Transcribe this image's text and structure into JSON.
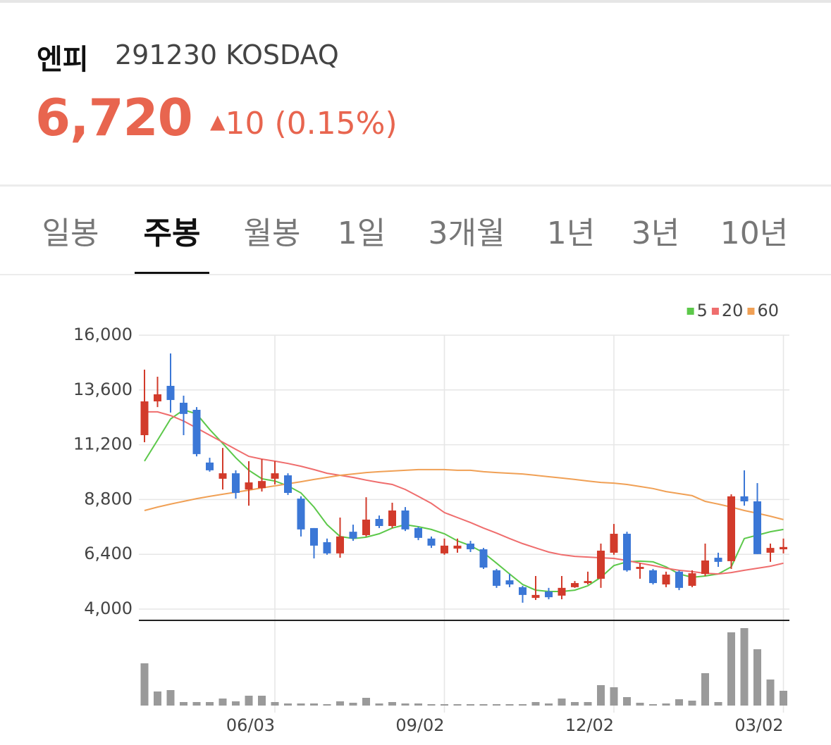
{
  "header": {
    "name": "엔피",
    "code": "291230 KOSDAQ",
    "price": "6,720",
    "change": "10 (0.15%)"
  },
  "tabs": {
    "items": [
      "일봉",
      "주봉",
      "월봉",
      "1일",
      "3개월",
      "1년",
      "3년",
      "10년"
    ],
    "selected": 1
  },
  "chart_data": {
    "type": "candlestick",
    "categories": [
      null,
      null,
      null,
      null,
      null,
      null,
      null,
      null,
      null,
      null,
      "06/03",
      null,
      null,
      null,
      null,
      null,
      null,
      null,
      null,
      null,
      null,
      null,
      null,
      "09/02",
      null,
      null,
      null,
      null,
      null,
      null,
      null,
      null,
      null,
      null,
      null,
      null,
      "12/02",
      null,
      null,
      null,
      null,
      null,
      null,
      null,
      null,
      null,
      null,
      null,
      null,
      "03/02"
    ],
    "open": [
      11620,
      13100,
      13780,
      13040,
      12730,
      10420,
      9710,
      9950,
      9240,
      9300,
      9710,
      9860,
      8840,
      7550,
      6930,
      6440,
      7390,
      7240,
      7950,
      7640,
      8320,
      7550,
      7090,
      6440,
      6650,
      6870,
      6620,
      5700,
      5260,
      4960,
      4490,
      4770,
      4590,
      4960,
      5140,
      5330,
      6470,
      7300,
      5760,
      5700,
      5080,
      5640,
      5020,
      5540,
      6250,
      6100,
      8940,
      8720,
      6470,
      6620
    ],
    "high": [
      14490,
      14180,
      15200,
      13350,
      12850,
      10630,
      11060,
      10080,
      10480,
      10570,
      10480,
      9950,
      8940,
      7550,
      7090,
      8010,
      7700,
      8900,
      8100,
      8660,
      8470,
      7610,
      7180,
      7090,
      7090,
      6990,
      6680,
      5760,
      5540,
      5020,
      5450,
      4930,
      5450,
      5230,
      5640,
      6870,
      7730,
      7390,
      6010,
      5760,
      5640,
      5700,
      5700,
      6870,
      6470,
      9030,
      10080,
      9520,
      6870,
      7090
    ],
    "low": [
      11310,
      12850,
      12610,
      11620,
      10690,
      10020,
      9240,
      8840,
      8530,
      9150,
      9460,
      9000,
      7180,
      6220,
      6380,
      6250,
      6990,
      7180,
      7550,
      7550,
      7420,
      7020,
      6680,
      6380,
      6470,
      6500,
      5760,
      4930,
      4960,
      4280,
      4400,
      4430,
      4430,
      4930,
      5080,
      4930,
      6380,
      5640,
      5330,
      5080,
      4960,
      4830,
      4960,
      5450,
      5850,
      5760,
      8530,
      6410,
      6070,
      6440
    ],
    "close": [
      13100,
      13410,
      13160,
      12550,
      10790,
      10080,
      9950,
      9090,
      9550,
      9610,
      9950,
      9090,
      7490,
      6780,
      6440,
      7180,
      7090,
      7920,
      7640,
      8320,
      7490,
      7120,
      6780,
      6780,
      6780,
      6620,
      5820,
      5020,
      5080,
      4620,
      4620,
      4520,
      4930,
      5140,
      5230,
      6560,
      7300,
      5700,
      5850,
      5140,
      5510,
      4930,
      5570,
      6130,
      6070,
      8940,
      8720,
      6410,
      6680,
      6720
    ],
    "volume": [
      60,
      20,
      22,
      5,
      5,
      5,
      10,
      6,
      14,
      14,
      5,
      3,
      3,
      3,
      2,
      6,
      4,
      11,
      3,
      5,
      3,
      3,
      2,
      2,
      2,
      2,
      2,
      2,
      2,
      2,
      5,
      3,
      10,
      5,
      5,
      29,
      26,
      12,
      4,
      2,
      3,
      9,
      7,
      46,
      5,
      104,
      110,
      80,
      37,
      21
    ],
    "up_color": "#d23b2b",
    "down_color": "#3b77d6",
    "volume_color": "#9a9a9a",
    "series": [
      {
        "name": "5",
        "color": "#5cc84a",
        "values": [
          10480,
          11400,
          12330,
          12730,
          12550,
          11870,
          11260,
          10630,
          10080,
          9710,
          9610,
          9400,
          9090,
          8470,
          7700,
          7180,
          7090,
          7150,
          7300,
          7550,
          7700,
          7610,
          7490,
          7300,
          6990,
          6780,
          6470,
          6010,
          5540,
          5080,
          4830,
          4770,
          4770,
          4830,
          5020,
          5390,
          5910,
          6070,
          6100,
          6070,
          5850,
          5540,
          5390,
          5450,
          5540,
          5850,
          7090,
          7240,
          7390,
          7490
        ]
      },
      {
        "name": "20",
        "color": "#ef6d6d",
        "values": [
          12640,
          12640,
          12480,
          12240,
          11930,
          11620,
          11310,
          11000,
          10690,
          10570,
          10480,
          10380,
          10260,
          10110,
          9950,
          9860,
          9770,
          9650,
          9550,
          9460,
          9240,
          8940,
          8630,
          8230,
          8010,
          7790,
          7550,
          7330,
          7090,
          6870,
          6680,
          6500,
          6380,
          6310,
          6280,
          6250,
          6220,
          6130,
          6010,
          5910,
          5790,
          5700,
          5640,
          5570,
          5540,
          5600,
          5700,
          5790,
          5880,
          6010
        ]
      },
      {
        "name": "60",
        "color": "#f0a055",
        "values": [
          8320,
          8470,
          8600,
          8720,
          8840,
          8940,
          9030,
          9120,
          9210,
          9310,
          9400,
          9490,
          9580,
          9680,
          9770,
          9860,
          9920,
          9980,
          10020,
          10050,
          10080,
          10110,
          10110,
          10110,
          10080,
          10080,
          10020,
          9980,
          9950,
          9920,
          9860,
          9800,
          9740,
          9680,
          9610,
          9550,
          9520,
          9460,
          9370,
          9280,
          9150,
          9060,
          8970,
          8720,
          8600,
          8470,
          8320,
          8200,
          8070,
          7920
        ]
      }
    ],
    "ylim": [
      4000,
      16000
    ],
    "yticks": [
      {
        "value": 4000,
        "label": "4,000"
      },
      {
        "value": 6400,
        "label": "6,400"
      },
      {
        "value": 8800,
        "label": "8,800"
      },
      {
        "value": 11200,
        "label": "11,200"
      },
      {
        "value": 13600,
        "label": "13,600"
      },
      {
        "value": 16000,
        "label": "16,000"
      }
    ],
    "grid": true,
    "legend": "top-right"
  }
}
